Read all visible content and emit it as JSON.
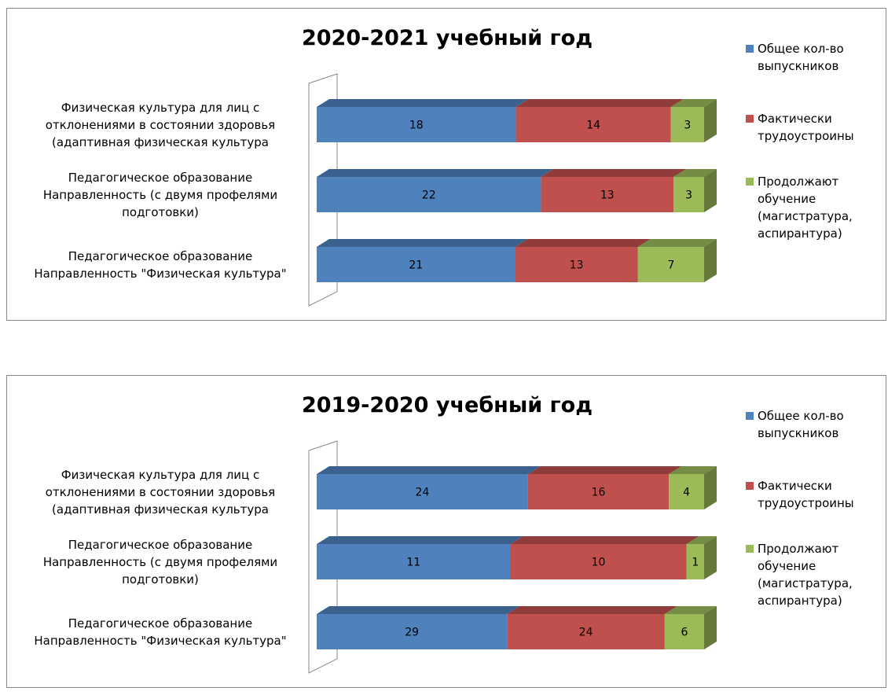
{
  "chart_data": [
    {
      "type": "bar",
      "orientation": "horizontal",
      "stacking": "percent",
      "title": "2020-2021 учебный год",
      "categories": [
        "Физическая культура для лиц с\nотклонениями в состоянии здоровья\n(адаптивная физическая культура",
        "Педагогическое образование\nНаправленность (с двумя профелями\nподготовки)",
        "Педагогическое образование\nНаправленность \"Физическая культура\""
      ],
      "series": [
        {
          "name": "Общее кол-во\nвыпускников",
          "color": "#4f81bd",
          "values": [
            18,
            22,
            21
          ]
        },
        {
          "name": "Фактически\nтрудоустроины",
          "color": "#c0504d",
          "values": [
            14,
            13,
            13
          ]
        },
        {
          "name": "Продолжают\nобучение\n(магистратура,\nаспирантура)",
          "color": "#9bbb59",
          "values": [
            3,
            3,
            7
          ]
        }
      ],
      "legend": "right"
    },
    {
      "type": "bar",
      "orientation": "horizontal",
      "stacking": "percent",
      "title": "2019-2020 учебный год",
      "categories": [
        "Физическая культура для лиц с\nотклонениями в состоянии здоровья\n(адаптивная физическая культура",
        "Педагогическое образование\nНаправленность (с двумя профелями\nподготовки)",
        "Педагогическое образование\nНаправленность \"Физическая культура\""
      ],
      "series": [
        {
          "name": "Общее кол-во\nвыпускников",
          "color": "#4f81bd",
          "values": [
            24,
            11,
            29
          ]
        },
        {
          "name": "Фактически\nтрудоустроины",
          "color": "#c0504d",
          "values": [
            16,
            10,
            24
          ]
        },
        {
          "name": "Продолжают\nобучение\n(магистратура,\nаспирантура)",
          "color": "#9bbb59",
          "values": [
            4,
            1,
            6
          ]
        }
      ],
      "legend": "right"
    }
  ]
}
